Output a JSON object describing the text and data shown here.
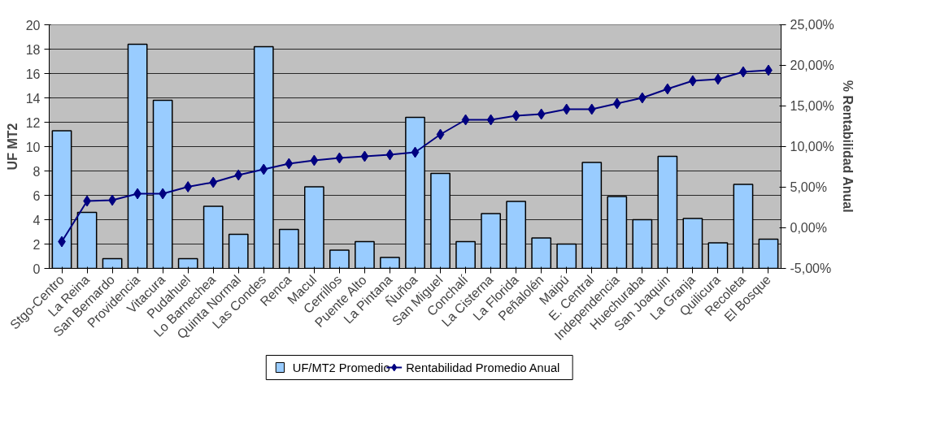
{
  "chart_data": {
    "type": "bar",
    "ylabel": "UF MT2",
    "y2label": "% Rentabilidad Anual",
    "categories": [
      "Stgo-Centro",
      "La Reina",
      "San Bernardo",
      "Providencia",
      "Vitacura",
      "Pudahuel",
      "Lo Barnechea",
      "Quinta Normal",
      "Las Condes",
      "Renca",
      "Macul",
      "Cerrillos",
      "Puente Alto",
      "La Pintana",
      "Ñuñoa",
      "San Miguel",
      "Conchalí",
      "La Cisterna",
      "La Florida",
      "Peñalolén",
      "Maipú",
      "E. Central",
      "Independencia",
      "Huechuraba",
      "San Joaquin",
      "La Granja",
      "Quilicura",
      "Recoleta",
      "El Bosque"
    ],
    "series": [
      {
        "name": "UF/MT2 Promedio",
        "color": "#99ccff",
        "values": [
          11.3,
          4.6,
          0.8,
          18.4,
          13.8,
          0.8,
          5.1,
          2.8,
          18.2,
          3.2,
          6.7,
          1.5,
          2.2,
          0.9,
          12.4,
          7.8,
          2.2,
          4.5,
          5.5,
          2.5,
          2.0,
          8.7,
          5.9,
          4.0,
          9.2,
          4.1,
          2.1,
          6.9,
          2.4
        ]
      },
      {
        "name": "Rentabilidad Promedio Anual",
        "type": "line",
        "axis": "y2",
        "color": "#000080",
        "marker": "diamond",
        "values": [
          -1.7,
          3.3,
          3.4,
          4.2,
          4.2,
          5.05,
          5.6,
          6.5,
          7.2,
          7.9,
          8.3,
          8.6,
          8.8,
          9.0,
          9.3,
          11.5,
          13.3,
          13.3,
          13.8,
          14.0,
          14.6,
          14.6,
          15.3,
          16.0,
          17.1,
          18.1,
          18.3,
          19.2,
          19.4
        ]
      }
    ],
    "ylim": [
      0,
      20
    ],
    "yticks": [
      0,
      2,
      4,
      6,
      8,
      10,
      12,
      14,
      16,
      18,
      20
    ],
    "y2lim": [
      -5,
      25
    ],
    "y2ticks": [
      {
        "value": -5,
        "label": "-5,00%"
      },
      {
        "value": 0,
        "label": "0,00%"
      },
      {
        "value": 5,
        "label": "5,00%"
      },
      {
        "value": 10,
        "label": "10,00%"
      },
      {
        "value": 15,
        "label": "15,00%"
      },
      {
        "value": 20,
        "label": "20,00%"
      },
      {
        "value": 25,
        "label": "25,00%"
      }
    ],
    "grid": "y",
    "legend": "bottom"
  }
}
